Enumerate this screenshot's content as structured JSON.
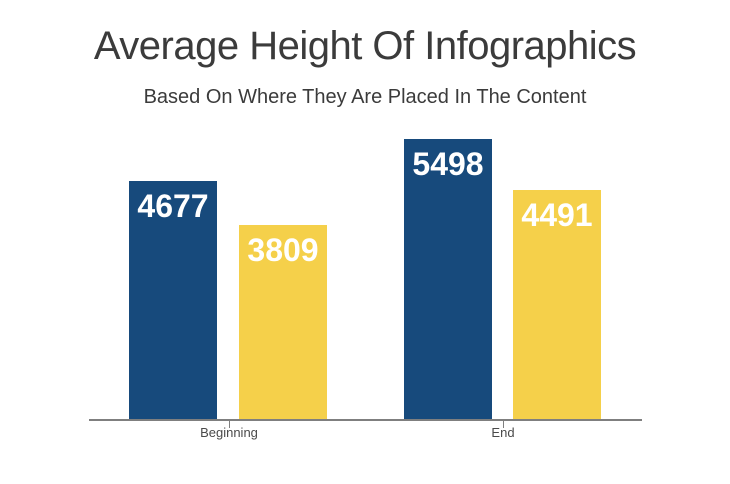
{
  "chart_data": {
    "type": "bar",
    "title": "Average Height Of Infographics",
    "subtitle": "Based On Where They Are Placed In The Content",
    "categories": [
      "Beginning",
      "End"
    ],
    "series": [
      {
        "name": "dark-blue",
        "color": "#174a7c",
        "values": [
          4677,
          5498
        ]
      },
      {
        "name": "yellow",
        "color": "#f5d04a",
        "values": [
          3809,
          4491
        ]
      }
    ],
    "ylim": [
      0,
      5498
    ],
    "grid": false,
    "legend": "none",
    "xlabel": "",
    "ylabel": "",
    "value_labels_shown": true,
    "value_label_color": "#ffffff",
    "axis_line_color": "#7f7f7f",
    "category_label_color": "#4a4a4a",
    "title_color": "#3b3b3b",
    "background_color": "#ffffff"
  }
}
